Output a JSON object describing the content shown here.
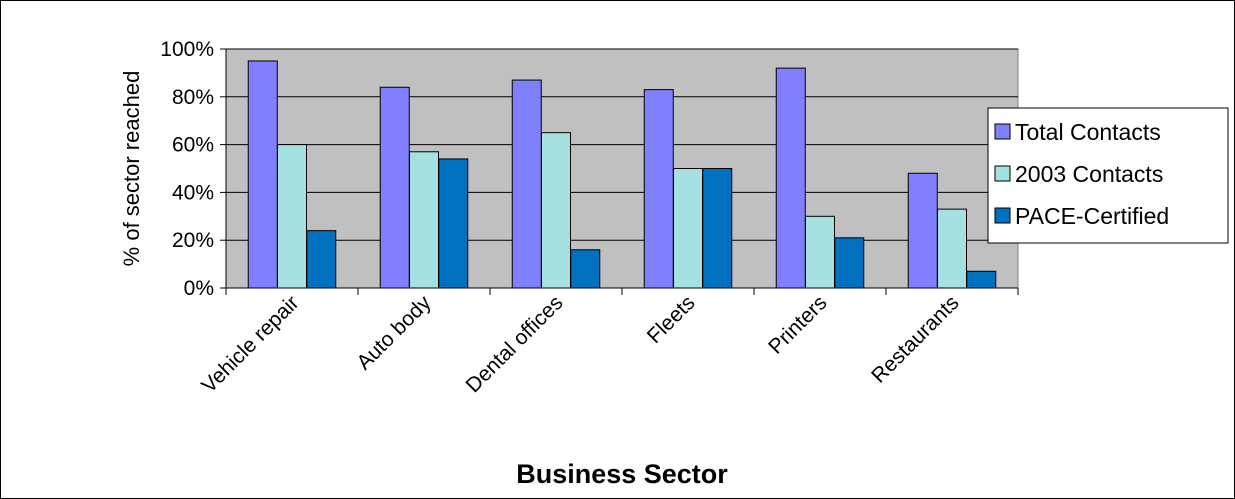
{
  "chart_data": {
    "type": "bar",
    "categories": [
      "Vehicle repair",
      "Auto body",
      "Dental offices",
      "Fleets",
      "Printers",
      "Restaurants"
    ],
    "series": [
      {
        "name": "Total Contacts",
        "values": [
          95,
          84,
          87,
          83,
          92,
          48
        ],
        "color": "#8080ff"
      },
      {
        "name": "2003 Contacts",
        "values": [
          60,
          57,
          65,
          50,
          30,
          33
        ],
        "color": "#a6e1e1"
      },
      {
        "name": "PACE-Certified",
        "values": [
          24,
          54,
          16,
          50,
          21,
          7
        ],
        "color": "#0070c0"
      }
    ],
    "title": "",
    "xlabel": "Business Sector",
    "ylabel": "% of sector reached",
    "ylim": [
      0,
      100
    ],
    "yticks": [
      "0%",
      "20%",
      "40%",
      "60%",
      "80%",
      "100%"
    ],
    "grid": true,
    "legend_position": "right",
    "plot_background": "#c0c0c0"
  }
}
